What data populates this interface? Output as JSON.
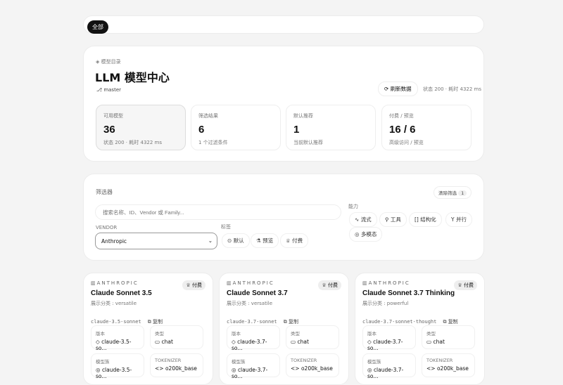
{
  "topbar": {
    "all_label": "全部"
  },
  "hero": {
    "eyebrow": "模型目录",
    "title": "LLM 模型中心",
    "branch": "master",
    "refresh_label": "刷新数据",
    "status": "状态 200 · 耗时 4322 ms",
    "stats": [
      {
        "label": "可用模型",
        "value": "36",
        "sub": "状态 200 · 耗时 4322 ms"
      },
      {
        "label": "筛选结果",
        "value": "6",
        "sub": "1 个过滤条件"
      },
      {
        "label": "默认推荐",
        "value": "1",
        "sub": "当前默认推荐"
      },
      {
        "label": "付费 / 预览",
        "value": "16 / 6",
        "sub": "高级访问 / 预览"
      }
    ]
  },
  "filter": {
    "title": "筛选器",
    "clear_label": "清除筛选",
    "clear_count": "1",
    "search_placeholder": "搜索名称、ID、Vendor 或 Family...",
    "vendor_label": "VENDOR",
    "vendor_value": "Anthropic",
    "tags_label": "标签",
    "tags": [
      "默认",
      "预览",
      "付费"
    ],
    "capabilities_label": "能力",
    "capabilities": [
      "流式",
      "工具",
      "结构化",
      "并行",
      "多模态"
    ]
  },
  "models": [
    {
      "vendor": "ANTHROPIC",
      "badge": "付费",
      "name": "Claude Sonnet 3.5",
      "category": "展示分类 : versatile",
      "id": "claude-3.5-sonnet",
      "copy": "复制",
      "version_label": "版本",
      "version": "claude-3.5-so...",
      "type_label": "类型",
      "type": "chat",
      "family_label": "模型族",
      "family": "claude-3.5-so...",
      "tokenizer_label": "TOKENIZER",
      "tokenizer": "o200k_base"
    },
    {
      "vendor": "ANTHROPIC",
      "badge": "付费",
      "name": "Claude Sonnet 3.7",
      "category": "展示分类 : versatile",
      "id": "claude-3.7-sonnet",
      "copy": "复制",
      "version_label": "版本",
      "version": "claude-3.7-so...",
      "type_label": "类型",
      "type": "chat",
      "family_label": "模型族",
      "family": "claude-3.7-so...",
      "tokenizer_label": "TOKENIZER",
      "tokenizer": "o200k_base"
    },
    {
      "vendor": "ANTHROPIC",
      "badge": "付费",
      "name": "Claude Sonnet 3.7 Thinking",
      "category": "展示分类 : powerful",
      "id": "claude-3.7-sonnet-thought",
      "copy": "复制",
      "version_label": "版本",
      "version": "claude-3.7-so...",
      "type_label": "类型",
      "type": "chat",
      "family_label": "模型族",
      "family": "claude-3.7-so...",
      "tokenizer_label": "TOKENIZER",
      "tokenizer": "o200k_base"
    }
  ]
}
